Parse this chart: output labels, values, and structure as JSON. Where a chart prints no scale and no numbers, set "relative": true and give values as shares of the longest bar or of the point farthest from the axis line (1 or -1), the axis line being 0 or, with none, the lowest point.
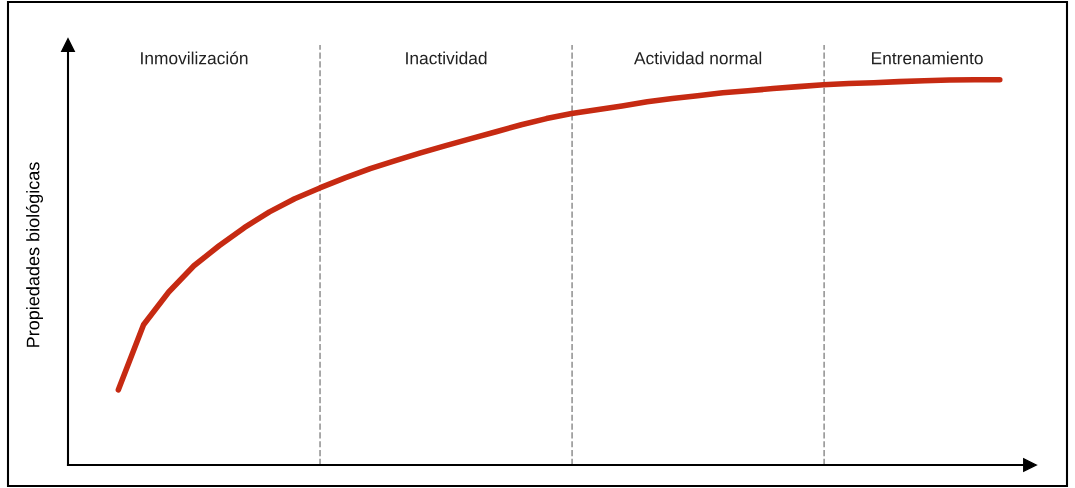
{
  "chart_data": {
    "type": "line",
    "relative": true,
    "ylabel": "Propiedades biológicas",
    "grid": "x",
    "legend": false,
    "marker": "none",
    "line_style": "solid",
    "categories": [
      null,
      null,
      null,
      null,
      null,
      null,
      null,
      null,
      null,
      null,
      null,
      null,
      null,
      null,
      null,
      null,
      null,
      null,
      null,
      null,
      null,
      null,
      null,
      null,
      null,
      null,
      null,
      null,
      null,
      null,
      null,
      null,
      null,
      null,
      null,
      null,
      null,
      null,
      null
    ],
    "series": [
      {
        "color": "#c62a12",
        "values": [
          null,
          null,
          0.195,
          0.364,
          0.449,
          0.517,
          0.569,
          0.616,
          0.657,
          0.691,
          0.719,
          0.745,
          0.769,
          0.79,
          0.81,
          0.829,
          0.847,
          0.865,
          0.883,
          0.899,
          0.912,
          0.922,
          0.932,
          0.943,
          0.951,
          0.958,
          0.966,
          0.971,
          0.977,
          0.982,
          0.987,
          0.99,
          0.992,
          0.995,
          0.997,
          0.999,
          1.0,
          1.0,
          null
        ]
      }
    ],
    "annotations": [
      "Inmovilización",
      "Inactividad",
      "Actividad normal",
      "Entrenamiento"
    ]
  }
}
